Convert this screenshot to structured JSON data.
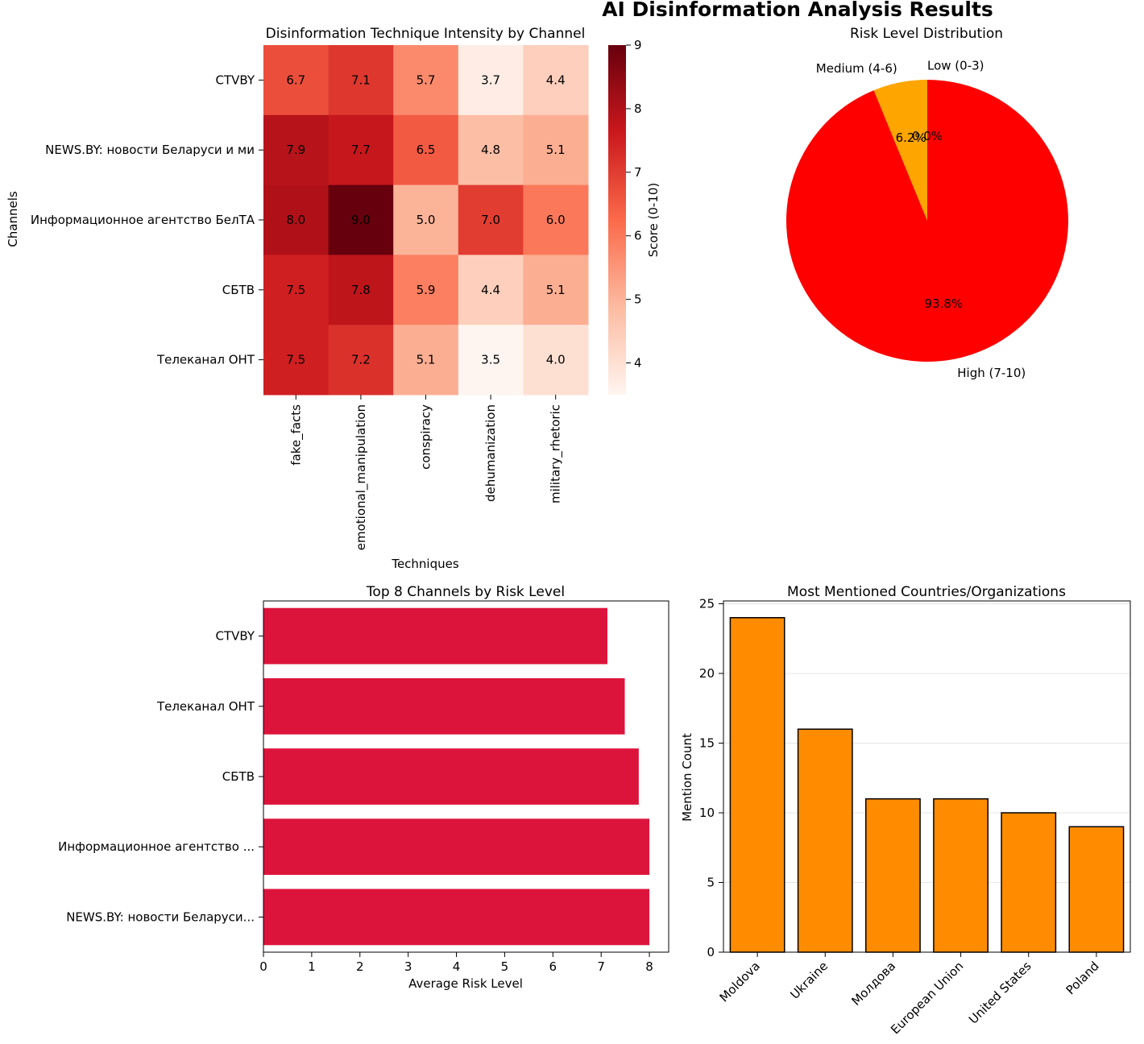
{
  "figure_title": "AI Disinformation Analysis Results",
  "chart_data": [
    {
      "type": "heatmap",
      "title": "Disinformation Technique Intensity by Channel",
      "xlabel": "Techniques",
      "ylabel": "Channels",
      "x_categories": [
        "fake_facts",
        "emotional_manipulation",
        "conspiracy",
        "dehumanization",
        "military_rhetoric"
      ],
      "y_categories": [
        "CTVBY",
        "NEWS.BY: новости Беларуси и ми",
        "Информационное агентство БелТА",
        "СБТВ",
        "Телеканал ОНТ"
      ],
      "values": [
        [
          6.7,
          7.1,
          5.7,
          3.7,
          4.4
        ],
        [
          7.9,
          7.7,
          6.5,
          4.8,
          5.1
        ],
        [
          8.0,
          9.0,
          5.0,
          7.0,
          6.0
        ],
        [
          7.5,
          7.8,
          5.9,
          4.4,
          5.1
        ],
        [
          7.5,
          7.2,
          5.1,
          3.5,
          4.0
        ]
      ],
      "value_labels": [
        [
          "6.7",
          "7.1",
          "5.7",
          "3.7",
          "4.4"
        ],
        [
          "7.9",
          "7.7",
          "6.5",
          "4.8",
          "5.1"
        ],
        [
          "8.0",
          "9.0",
          "5.0",
          "7.0",
          "6.0"
        ],
        [
          "7.5",
          "7.8",
          "5.9",
          "4.4",
          "5.1"
        ],
        [
          "7.5",
          "7.2",
          "5.1",
          "3.5",
          "4.0"
        ]
      ],
      "colorbar": {
        "label": "Score (0-10)",
        "range": [
          3.5,
          9.0
        ],
        "ticks": [
          "4",
          "5",
          "6",
          "7",
          "8",
          "9"
        ],
        "colormap": "Reds"
      }
    },
    {
      "type": "pie",
      "title": "Risk Level Distribution",
      "labels": [
        "Low (0-3)",
        "Medium (4-6)",
        "High (7-10)"
      ],
      "values": [
        0.0,
        6.2,
        93.8
      ],
      "percent_labels": [
        "0.0%",
        "6.2%",
        "93.8%"
      ],
      "colors": [
        "#008000",
        "#ffa500",
        "#ff0000"
      ]
    },
    {
      "type": "bar",
      "orientation": "horizontal",
      "title": "Top 8 Channels by Risk Level",
      "xlabel": "Average Risk Level",
      "ylabel": "",
      "categories": [
        "CTVBY",
        "Телеканал ОНТ",
        "СБТВ",
        "Информационное агентство ...",
        "NEWS.BY: новости Беларуси..."
      ],
      "values": [
        7.13,
        7.49,
        7.78,
        8.0,
        8.0
      ],
      "xlim": [
        0,
        8.4
      ],
      "xticks": [
        "0",
        "1",
        "2",
        "3",
        "4",
        "5",
        "6",
        "7",
        "8"
      ],
      "color": "#dc143c"
    },
    {
      "type": "bar",
      "title": "Most Mentioned Countries/Organizations",
      "xlabel": "",
      "ylabel": "Mention Count",
      "categories": [
        "Moldova",
        "Ukraine",
        "Молдова",
        "European Union",
        "United States",
        "Poland"
      ],
      "values": [
        24,
        16,
        11,
        11,
        10,
        9
      ],
      "ylim": [
        0,
        25.2
      ],
      "yticks": [
        "0",
        "5",
        "10",
        "15",
        "20",
        "25"
      ],
      "grid": true,
      "color": "#ff8c00"
    }
  ]
}
